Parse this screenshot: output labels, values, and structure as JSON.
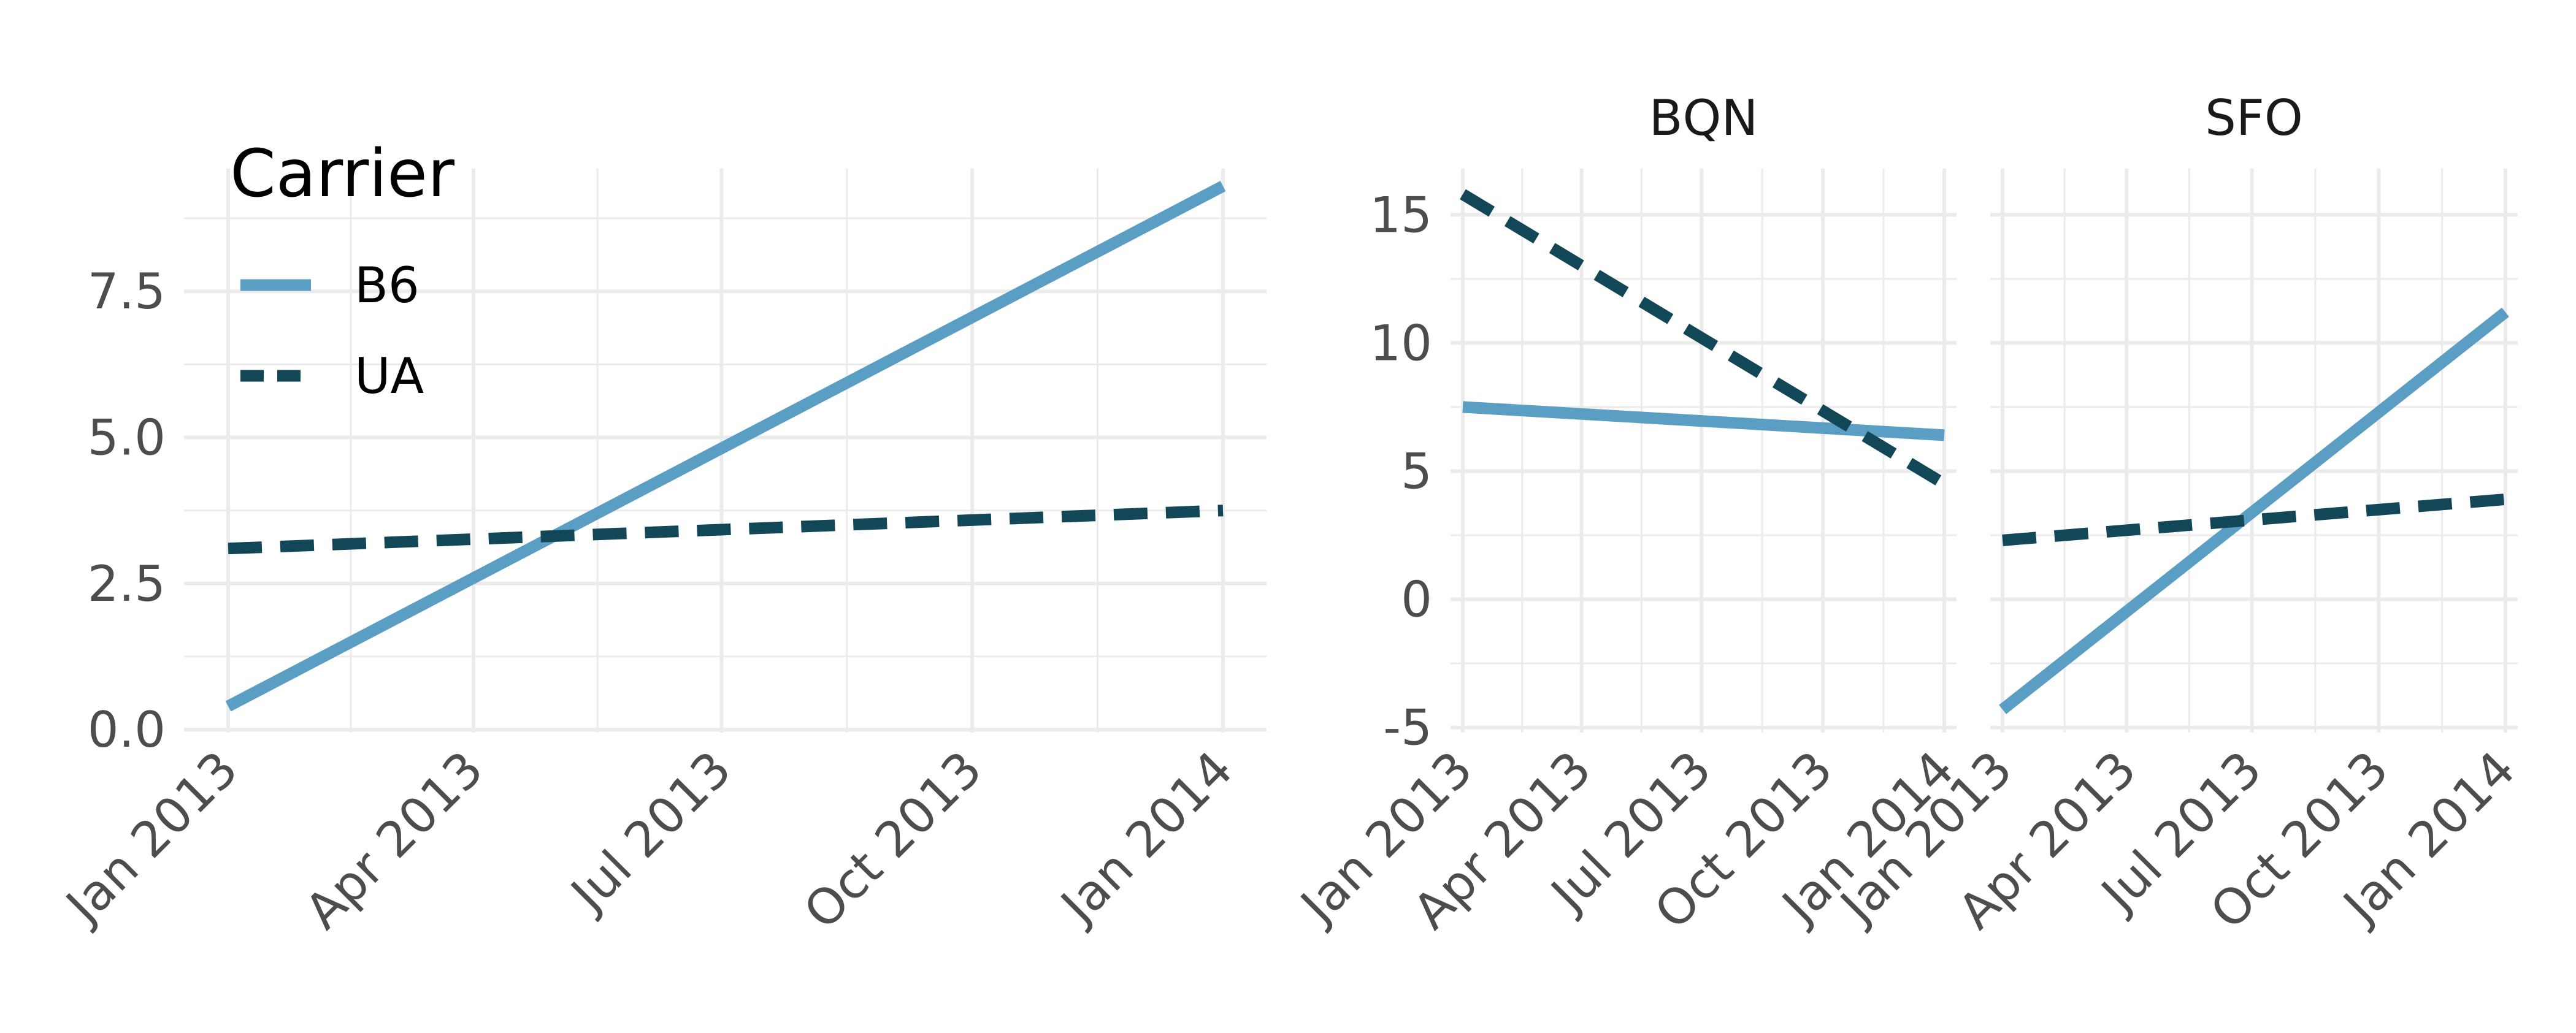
{
  "legend": {
    "title": "Carrier",
    "position": "inside top-left of left panel",
    "entries": [
      {
        "label": "B6",
        "color": "#5B9EC3",
        "linetype": "solid"
      },
      {
        "label": "UA",
        "color": "#124757",
        "linetype": "dashed"
      }
    ]
  },
  "chart_data": [
    {
      "type": "line",
      "title": "",
      "xlabel": "",
      "ylabel": "",
      "x_tick_labels": [
        "Jan 2013",
        "Apr 2013",
        "Jul 2013",
        "Oct 2013",
        "Jan 2014"
      ],
      "x_range": [
        "2013-01-01",
        "2014-01-01"
      ],
      "y_ticks": [
        0.0,
        2.5,
        5.0,
        7.5
      ],
      "y_tick_labels": [
        "0.0",
        "2.5",
        "5.0",
        "7.5"
      ],
      "ylim": [
        -0.05,
        9.6
      ],
      "grid": true,
      "series": [
        {
          "name": "B6",
          "x": [
            "2013-01-01",
            "2014-01-01"
          ],
          "values": [
            0.4,
            9.3
          ]
        },
        {
          "name": "UA",
          "x": [
            "2013-01-01",
            "2014-01-01"
          ],
          "values": [
            3.1,
            3.75
          ]
        }
      ]
    },
    {
      "type": "line",
      "facet": "BQN",
      "x_tick_labels": [
        "Jan 2013",
        "Apr 2013",
        "Jul 2013",
        "Oct 2013",
        "Jan 2014"
      ],
      "x_range": [
        "2013-01-01",
        "2014-01-01"
      ],
      "y_ticks": [
        -5,
        0,
        5,
        10,
        15
      ],
      "y_tick_labels": [
        "-5",
        "0",
        "5",
        "10",
        "15"
      ],
      "ylim": [
        -5.2,
        16.8
      ],
      "grid": true,
      "series": [
        {
          "name": "B6",
          "x": [
            "2013-01-01",
            "2014-01-01"
          ],
          "values": [
            7.5,
            6.4
          ]
        },
        {
          "name": "UA",
          "x": [
            "2013-01-01",
            "2014-01-01"
          ],
          "values": [
            15.8,
            4.5
          ]
        }
      ]
    },
    {
      "type": "line",
      "facet": "SFO",
      "x_tick_labels": [
        "Jan 2013",
        "Apr 2013",
        "Jul 2013",
        "Oct 2013",
        "Jan 2014"
      ],
      "x_range": [
        "2013-01-01",
        "2014-01-01"
      ],
      "y_ticks": [
        -5,
        0,
        5,
        10,
        15
      ],
      "y_tick_labels": [
        "-5",
        "0",
        "5",
        "10",
        "15"
      ],
      "ylim": [
        -5.2,
        16.8
      ],
      "grid": true,
      "series": [
        {
          "name": "B6",
          "x": [
            "2013-01-01",
            "2014-01-01"
          ],
          "values": [
            -4.3,
            11.2
          ]
        },
        {
          "name": "UA",
          "x": [
            "2013-01-01",
            "2014-01-01"
          ],
          "values": [
            2.3,
            3.9
          ]
        }
      ]
    }
  ]
}
